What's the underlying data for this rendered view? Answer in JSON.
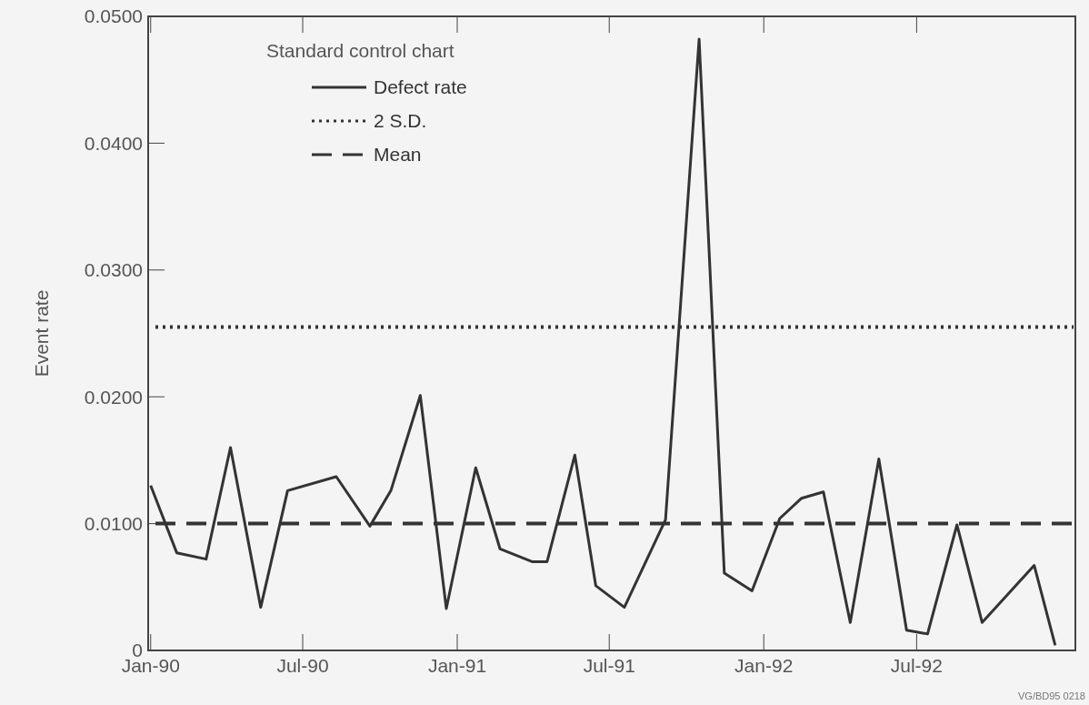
{
  "chart_data": {
    "type": "line",
    "ylabel": "Event rate",
    "legend_title": "Standard control chart",
    "legend": "top left",
    "grid": false,
    "line_style": "solid",
    "x": [
      "1990-01-01",
      "1990-02-01",
      "1990-03-08",
      "1990-04-06",
      "1990-05-12",
      "1990-06-13",
      "1990-08-10",
      "1990-09-19",
      "1990-10-14",
      "1990-11-18",
      "1990-12-19",
      "1991-01-23",
      "1991-02-21",
      "1991-03-31",
      "1991-04-18",
      "1991-05-21",
      "1991-06-15",
      "1991-07-19",
      "1991-09-06",
      "1991-10-16",
      "1991-11-15",
      "1991-12-18",
      "1992-01-20",
      "1992-02-15",
      "1992-03-12",
      "1992-04-13",
      "1992-05-17",
      "1992-06-19",
      "1992-07-14",
      "1992-08-18",
      "1992-09-17",
      "1992-11-18",
      "1992-12-13"
    ],
    "series": [
      {
        "name": "Defect rate",
        "color": "#333333",
        "values": [
          0.013,
          0.0077,
          0.0072,
          0.016,
          0.0034,
          0.0126,
          0.0137,
          0.0098,
          0.0126,
          0.0201,
          0.0033,
          0.0144,
          0.008,
          0.007,
          0.007,
          0.0154,
          0.0051,
          0.0034,
          0.0103,
          0.0482,
          0.0061,
          0.0047,
          0.0104,
          0.012,
          0.0125,
          0.0022,
          0.0151,
          0.0016,
          0.0013,
          0.0099,
          0.0022,
          0.0067,
          0.0004
        ]
      }
    ],
    "ref_lines": [
      {
        "axis": "y",
        "value": 0.0255,
        "label": "2 S.D.",
        "line_style": "dotted",
        "color": "#333333"
      },
      {
        "axis": "y",
        "value": 0.01,
        "label": "Mean",
        "line_style": "dashed",
        "color": "#333333"
      }
    ],
    "xlim": [
      "1989-12-29",
      "1993-01-06"
    ],
    "xticks": [
      {
        "value": "1990-01-01",
        "label": "Jan-90"
      },
      {
        "value": "1990-07-01",
        "label": "Jul-90"
      },
      {
        "value": "1991-01-01",
        "label": "Jan-91"
      },
      {
        "value": "1991-07-01",
        "label": "Jul-91"
      },
      {
        "value": "1992-01-01",
        "label": "Jan-92"
      },
      {
        "value": "1992-07-01",
        "label": "Jul-92"
      }
    ],
    "ylim": [
      0,
      0.05
    ],
    "yticks": [
      0,
      {
        "value": 0.01,
        "label": "0.0100"
      },
      {
        "value": 0.02,
        "label": "0.0200"
      },
      {
        "value": 0.03,
        "label": "0.0300"
      },
      {
        "value": 0.04,
        "label": "0.0400"
      },
      {
        "value": 0.05,
        "label": "0.0500"
      }
    ],
    "annotations": [
      "VG/BD95 0218"
    ]
  }
}
